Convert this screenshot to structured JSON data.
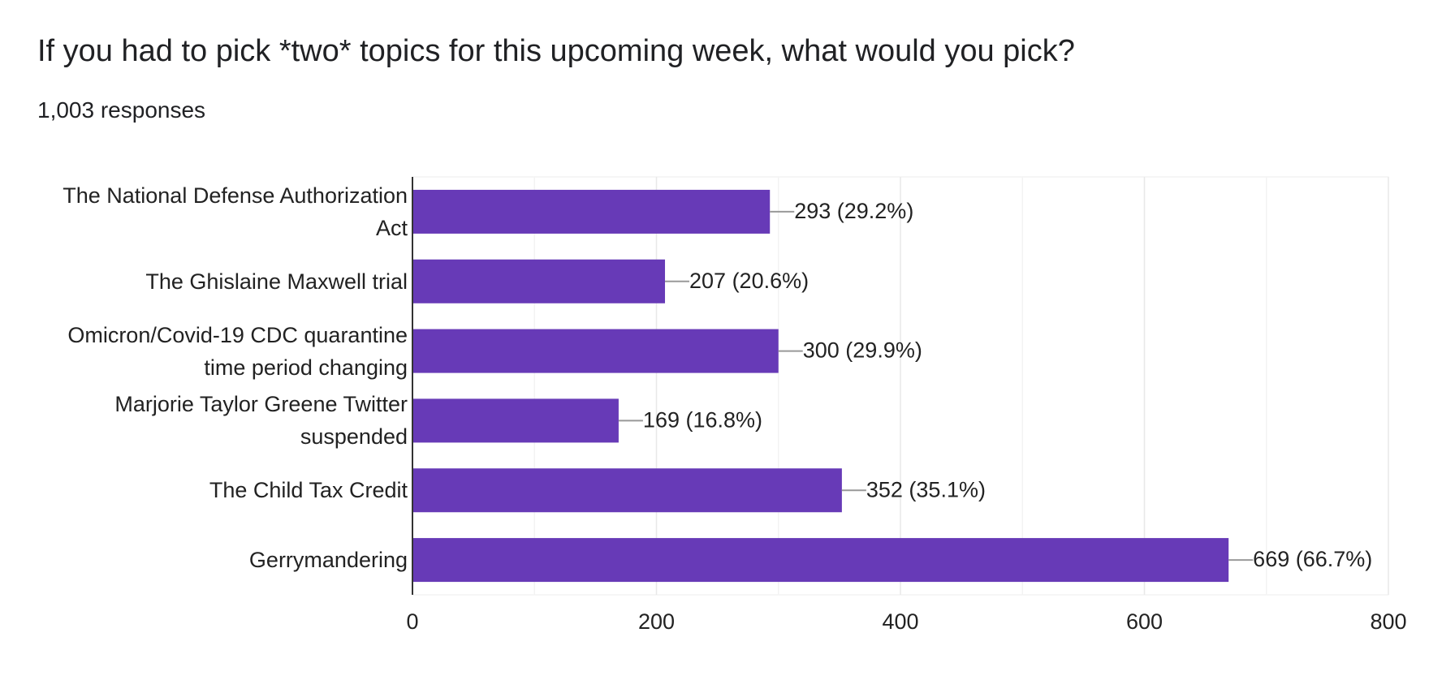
{
  "chart_data": {
    "type": "hbar",
    "title": "If you had to pick *two* topics for this upcoming week, what would you pick?",
    "subtitle": "1,003 responses",
    "categories": [
      "The National Defense Authorization Act",
      "The Ghislaine Maxwell trial",
      "Omicron/Covid-19 CDC quarantine time period changing",
      "Marjorie Taylor Greene Twitter suspended",
      "The Child Tax Credit",
      "Gerrymandering"
    ],
    "values": [
      293,
      207,
      300,
      169,
      352,
      669
    ],
    "value_labels": [
      "293 (29.2%)",
      "207 (20.6%)",
      "300 (29.9%)",
      "169 (16.8%)",
      "352 (35.1%)",
      "669 (66.7%)"
    ],
    "color": "#673ab7",
    "xlim": [
      0,
      800
    ],
    "xticks": [
      0,
      200,
      400,
      600,
      800
    ],
    "minor_grid": [
      100,
      300,
      500,
      700
    ],
    "grid": true
  }
}
